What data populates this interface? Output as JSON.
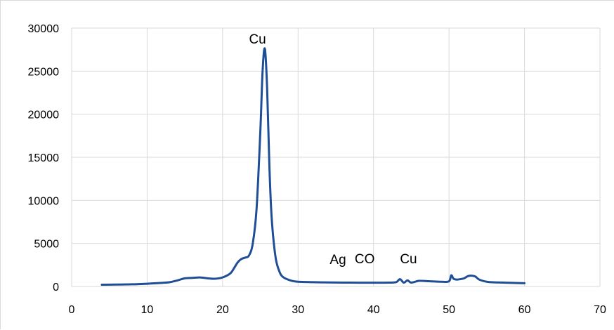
{
  "chart_data": {
    "type": "line",
    "title": "",
    "xlabel": "",
    "ylabel": "",
    "xlim": [
      0,
      70
    ],
    "ylim": [
      0,
      30000
    ],
    "x_ticks": [
      "0",
      "10",
      "20",
      "30",
      "40",
      "50",
      "60",
      "70"
    ],
    "y_ticks": [
      "0",
      "5000",
      "10000",
      "15000",
      "20000",
      "25000",
      "30000"
    ],
    "grid": true,
    "legend": "none",
    "colors": {
      "line": "#1f4e96",
      "grid": "#d9d9d9"
    },
    "annotations": [
      {
        "text": "Cu",
        "x": 23.5,
        "y": 28200
      },
      {
        "text": "Ag",
        "x": 34.2,
        "y": 2600
      },
      {
        "text": "CO",
        "x": 37.5,
        "y": 2700
      },
      {
        "text": "Cu",
        "x": 43.5,
        "y": 2700
      }
    ],
    "series": [
      {
        "x": [
          4,
          6,
          8,
          10,
          12,
          13,
          14,
          15,
          16,
          17,
          18,
          19,
          20,
          21,
          21.5,
          22,
          22.5,
          23,
          23.5,
          24,
          24.5,
          25,
          25.3,
          25.6,
          25.9,
          26.2,
          26.5,
          27,
          27.5,
          28,
          29,
          30,
          32,
          34,
          36,
          38,
          40,
          42,
          43,
          43.5,
          44,
          44.5,
          45,
          46,
          47,
          48,
          49,
          50,
          50.3,
          50.6,
          51,
          51.5,
          52,
          52.5,
          53,
          53.5,
          54,
          55,
          56,
          58,
          60
        ],
        "y": [
          200,
          220,
          250,
          320,
          420,
          500,
          700,
          950,
          1000,
          1050,
          950,
          900,
          1050,
          1500,
          2100,
          2800,
          3200,
          3350,
          3600,
          5000,
          9000,
          18000,
          25000,
          27600,
          23000,
          14000,
          8000,
          3500,
          1800,
          1100,
          700,
          550,
          500,
          470,
          450,
          440,
          440,
          450,
          500,
          850,
          450,
          700,
          450,
          650,
          620,
          580,
          550,
          600,
          1300,
          900,
          800,
          850,
          950,
          1200,
          1250,
          1150,
          800,
          550,
          480,
          430,
          380
        ]
      }
    ]
  }
}
